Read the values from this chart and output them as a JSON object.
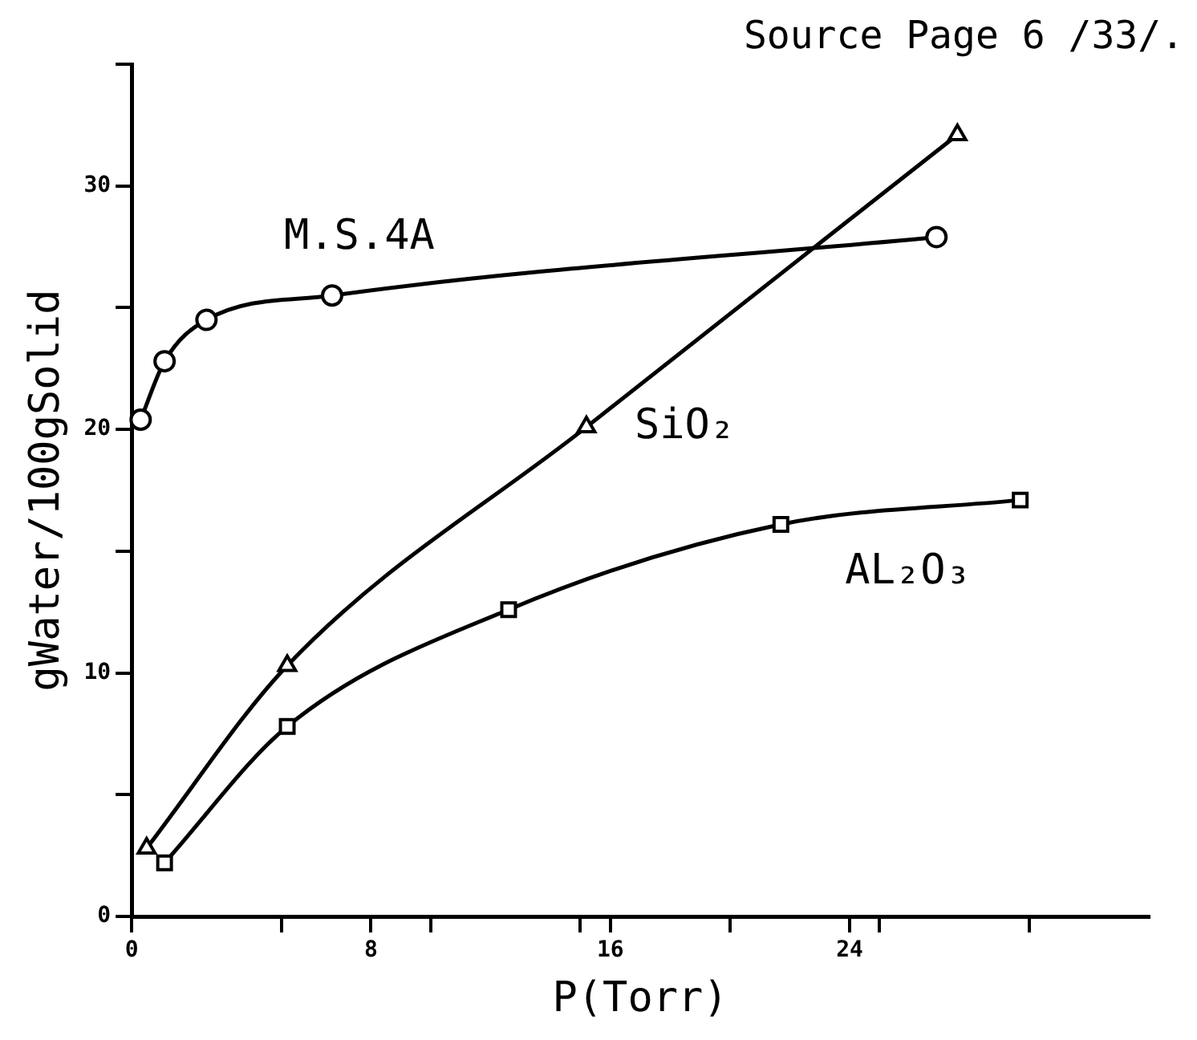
{
  "chart_data": {
    "type": "line",
    "xlabel": "P(Torr)",
    "ylabel": "gWater/100gSolid",
    "annotations": [
      "Source Page 6 /33/."
    ],
    "xlim": [
      0,
      34
    ],
    "xticks": [
      0,
      {
        "value": 5,
        "label": null
      },
      8,
      {
        "value": 10,
        "label": null
      },
      {
        "value": 15,
        "label": null
      },
      16,
      {
        "value": 20,
        "label": null
      },
      24,
      {
        "value": 25,
        "label": null
      },
      {
        "value": 30,
        "label": null
      }
    ],
    "ylim": [
      0,
      35
    ],
    "yticks": [
      0,
      {
        "value": 5,
        "label": null
      },
      10,
      {
        "value": 15,
        "label": null
      },
      20,
      {
        "value": 25,
        "label": null
      },
      30,
      {
        "value": 35,
        "label": null
      }
    ],
    "grid": false,
    "legend": false,
    "series": [
      {
        "name": "M.S.4A",
        "color": "#000000",
        "marker": "circle",
        "x": [
          0.3,
          1.1,
          2.5,
          6.7,
          26.9
        ],
        "values": [
          20.4,
          22.8,
          24.5,
          25.5,
          27.9
        ]
      },
      {
        "name": "SiO₂",
        "color": "#000000",
        "marker": "triangle",
        "x": [
          0.5,
          5.2,
          15.2,
          27.6
        ],
        "values": [
          2.8,
          10.3,
          20.1,
          32.1
        ]
      },
      {
        "name": "AL₂O₃",
        "color": "#000000",
        "marker": "square",
        "x": [
          1.1,
          5.2,
          12.6,
          21.7,
          29.7
        ],
        "values": [
          2.2,
          7.8,
          12.6,
          16.1,
          17.1
        ]
      }
    ]
  }
}
